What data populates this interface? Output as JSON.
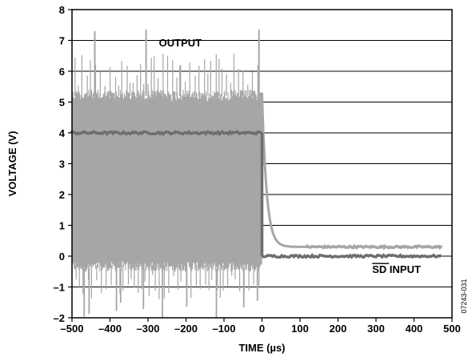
{
  "chart_data": {
    "type": "line",
    "title": "",
    "xlabel": "TIME (µs)",
    "ylabel": "VOLTAGE (V)",
    "xlim": [
      -500,
      500
    ],
    "ylim": [
      -2,
      8
    ],
    "x_ticks": [
      -500,
      -400,
      -300,
      -200,
      -100,
      0,
      100,
      200,
      300,
      400,
      500
    ],
    "x_tick_labels": [
      "–500",
      "–400",
      "–300",
      "–200",
      "–100",
      "0",
      "100",
      "200",
      "300",
      "400",
      "500"
    ],
    "y_ticks": [
      -2,
      -1,
      0,
      1,
      2,
      3,
      4,
      5,
      6,
      7,
      8
    ],
    "y_tick_labels": [
      "–2",
      "–1",
      "0",
      "1",
      "2",
      "3",
      "4",
      "5",
      "6",
      "7",
      "8"
    ],
    "grid": "horizontal",
    "annotations": [
      {
        "text": "OUTPUT",
        "x": -215,
        "y": 6.8
      },
      {
        "text": "SD INPUT",
        "x": 330,
        "y": -0.45,
        "overline_prefix": "SD"
      }
    ],
    "figure_code": "07243-031",
    "series": [
      {
        "name": "OUTPUT",
        "color": "#a6a6a6",
        "description_values": {
          "switching_band_high_before_0": 5.4,
          "switching_band_low_before_0": -0.5,
          "spike_peaks": [
            {
              "x": -440,
              "y": 7.3
            },
            {
              "x": -305,
              "y": 7.35
            },
            {
              "x": -215,
              "y": 6.2
            },
            {
              "x": -8,
              "y": 7.35
            }
          ],
          "negative_spikes_to": -2.0,
          "decay_start_x": 0,
          "decay_end_x": 45,
          "settled_value": 0.3,
          "end_x": 475
        }
      },
      {
        "name": "SD INPUT",
        "color": "#6e6e6e",
        "description_values": {
          "level_before_0": 4.0,
          "level_after_0": 0.0,
          "start_x": -500,
          "end_x": 475
        }
      }
    ]
  }
}
